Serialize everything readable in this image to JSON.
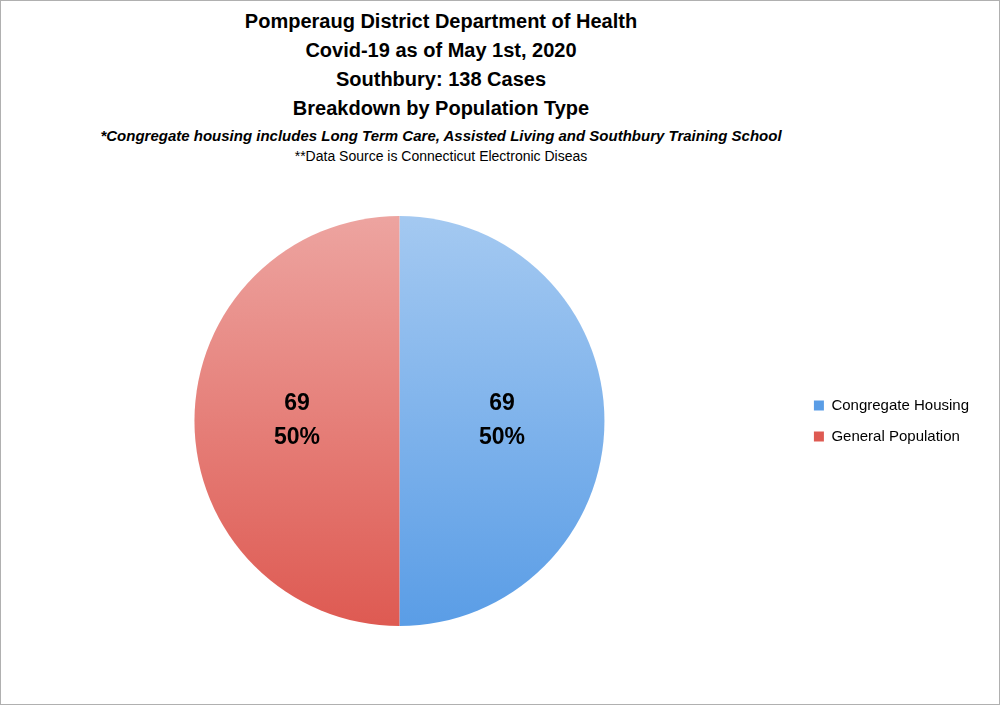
{
  "chart_data": {
    "type": "pie",
    "title": [
      "Pomperaug District Department of Health",
      "Covid-19 as of May 1st, 2020",
      "Southbury: 138 Cases",
      "Breakdown by Population Type"
    ],
    "notes": [
      "*Congregate housing includes Long Term Care, Assisted Living and Southbury Training School",
      "**Data Source is Connecticut Electronic Diseas"
    ],
    "categories": [
      "Congregate Housing",
      "General Population"
    ],
    "values": [
      69,
      69
    ],
    "percent": [
      50,
      50
    ],
    "percent_labels": [
      "50%",
      "50%"
    ],
    "colors": [
      "#5a9de6",
      "#de5a52"
    ],
    "legend": "right",
    "data_labels": true
  }
}
